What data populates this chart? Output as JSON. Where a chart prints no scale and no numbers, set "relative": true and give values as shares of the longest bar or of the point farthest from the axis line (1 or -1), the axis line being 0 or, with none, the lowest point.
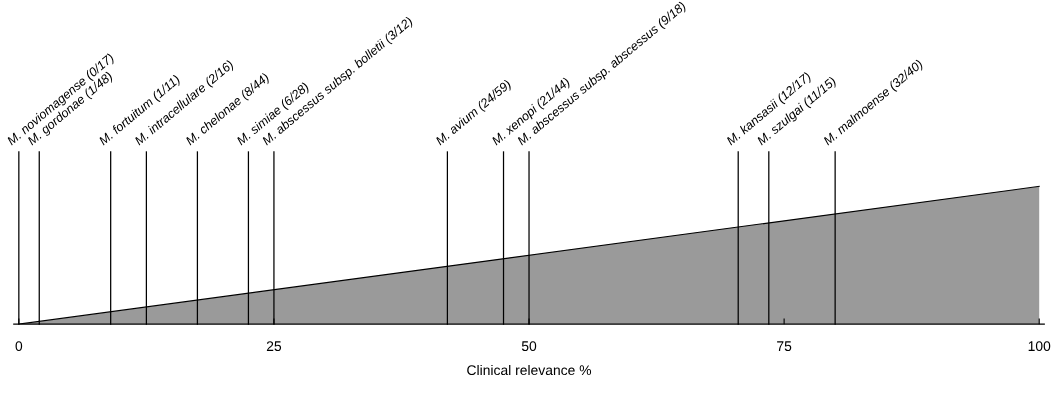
{
  "chart_data": {
    "type": "area",
    "relative": true,
    "xlabel": "Clinical relevance %",
    "x": [
      0,
      100
    ],
    "series": [
      {
        "color": "#9a9a9a",
        "values": [
          0,
          1
        ]
      }
    ],
    "xlim": [
      -0.5,
      100.5
    ],
    "xticks": [
      0,
      25,
      50,
      75,
      100
    ],
    "grid": false,
    "ref_lines": [
      {
        "axis": "x",
        "value": 0,
        "label": "M. noviomagense (0/17)",
        "color": "#000000"
      },
      {
        "axis": "x",
        "value": 2,
        "label": "M. gordonae (1/48)",
        "color": "#000000"
      },
      {
        "axis": "x",
        "value": 9,
        "label": "M. fortuitum (1/11)",
        "color": "#000000"
      },
      {
        "axis": "x",
        "value": 12.5,
        "label": "M. intracellulare (2/16)",
        "color": "#000000"
      },
      {
        "axis": "x",
        "value": 17.5,
        "label": "M. chelonae (8/44)",
        "color": "#000000"
      },
      {
        "axis": "x",
        "value": 22.5,
        "label": "M. simiae (6/28)",
        "color": "#000000"
      },
      {
        "axis": "x",
        "value": 25,
        "label": "M. abscessus subsp. bolletii (3/12)",
        "color": "#000000"
      },
      {
        "axis": "x",
        "value": 42,
        "label": "M. avium (24/59)",
        "color": "#000000"
      },
      {
        "axis": "x",
        "value": 47.5,
        "label": "M. xenopi (21/44)",
        "color": "#000000"
      },
      {
        "axis": "x",
        "value": 50,
        "label": "M. abscessus subsp. abscessus (9/18)",
        "color": "#000000"
      },
      {
        "axis": "x",
        "value": 70.5,
        "label": "M. kansasii (12/17)",
        "color": "#000000"
      },
      {
        "axis": "x",
        "value": 73.5,
        "label": "M. szulgai (11/15)",
        "color": "#000000"
      },
      {
        "axis": "x",
        "value": 80,
        "label": "M. malmoense (32/40)",
        "color": "#000000"
      }
    ]
  }
}
